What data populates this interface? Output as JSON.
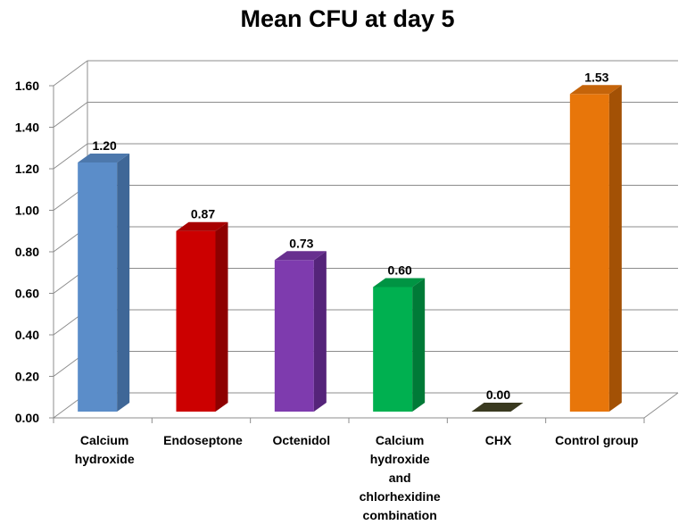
{
  "chart_data": {
    "type": "bar",
    "title": "Mean CFU at day 5",
    "xlabel": "",
    "ylabel": "",
    "categories": [
      [
        "Calcium",
        "hydroxide"
      ],
      [
        "Endoseptone"
      ],
      [
        "Octenidol"
      ],
      [
        "Calcium",
        "hydroxide",
        "and",
        "chlorhexidine",
        "combination"
      ],
      [
        "CHX"
      ],
      [
        "Control group"
      ]
    ],
    "values": [
      1.2,
      0.87,
      0.73,
      0.6,
      0.0,
      1.53
    ],
    "data_labels": [
      "1.20",
      "0.87",
      "0.73",
      "0.60",
      "0.00",
      "1.53"
    ],
    "colors": [
      "#5B8DC9",
      "#CC0000",
      "#7E3BAE",
      "#00B050",
      "#4A4A2A",
      "#E8760A"
    ],
    "side_colors": [
      "#3F6797",
      "#8E0000",
      "#55247A",
      "#007A37",
      "#2E2E18",
      "#A35105"
    ],
    "top_colors": [
      "#4D78AC",
      "#A80000",
      "#68308F",
      "#009443",
      "#3A3A20",
      "#C5640A"
    ],
    "yticks": [
      "0.00",
      "0.20",
      "0.40",
      "0.60",
      "0.80",
      "1.00",
      "1.20",
      "1.40",
      "1.60"
    ],
    "ylim": [
      0,
      1.6
    ],
    "grid": true,
    "three_d": true,
    "legend": "none"
  }
}
